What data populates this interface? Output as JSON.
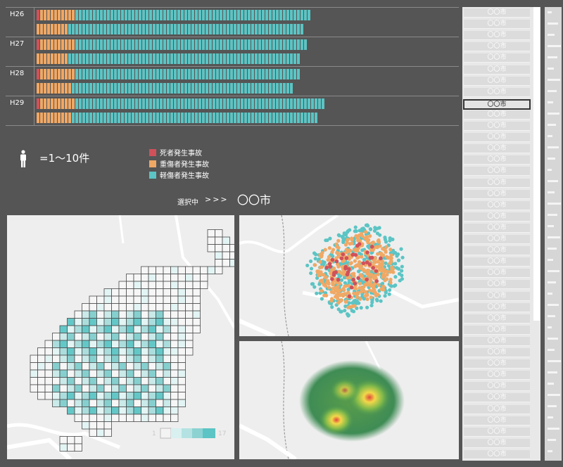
{
  "years": [
    {
      "label": "H26",
      "rows": [
        {
          "dead": 1,
          "serious": 10,
          "minor": 67
        },
        {
          "dead": 0,
          "serious": 9,
          "minor": 67
        }
      ]
    },
    {
      "label": "H27",
      "rows": [
        {
          "dead": 1,
          "serious": 10,
          "minor": 66
        },
        {
          "dead": 0,
          "serious": 9,
          "minor": 66
        }
      ]
    },
    {
      "label": "H28",
      "rows": [
        {
          "dead": 1,
          "serious": 10,
          "minor": 64
        },
        {
          "dead": 0,
          "serious": 10,
          "minor": 63
        }
      ]
    },
    {
      "label": "H29",
      "rows": [
        {
          "dead": 1,
          "serious": 10,
          "minor": 71
        },
        {
          "dead": 0,
          "serious": 10,
          "minor": 70
        }
      ]
    }
  ],
  "legend": {
    "unit_text": "=1～10件",
    "items": [
      {
        "label": "死者発生事故",
        "color": "#d0515a"
      },
      {
        "label": "重傷者発生事故",
        "color": "#f0a865"
      },
      {
        "label": "軽傷者発生事故",
        "color": "#5cc4c4"
      }
    ]
  },
  "selection": {
    "label": "選択中",
    "arrows": ">>>",
    "city": "〇〇市"
  },
  "grid_map": {
    "scale_low": "1",
    "scale_high": "17"
  },
  "city_list": {
    "items": [
      "〇〇市",
      "〇〇市",
      "〇〇市",
      "〇〇市",
      "〇〇市",
      "〇〇市",
      "〇〇市",
      "〇〇市",
      "〇〇市",
      "〇〇市",
      "〇〇市",
      "〇〇市",
      "〇〇市",
      "〇〇市",
      "〇〇市",
      "〇〇市",
      "〇〇市",
      "〇〇市",
      "〇〇市",
      "〇〇市",
      "〇〇市",
      "〇〇市",
      "〇〇市",
      "〇〇市",
      "〇〇市",
      "〇〇市",
      "〇〇市",
      "〇〇市",
      "〇〇市",
      "〇〇市",
      "〇〇市",
      "〇〇市",
      "〇〇市",
      "〇〇市",
      "〇〇市",
      "〇〇市",
      "〇〇市",
      "〇〇市",
      "〇〇市",
      "〇〇市"
    ],
    "selected_index": 8
  },
  "colors": {
    "background": "#555555",
    "dead": "#d0515a",
    "serious": "#f0a865",
    "minor": "#5cc4c4"
  }
}
